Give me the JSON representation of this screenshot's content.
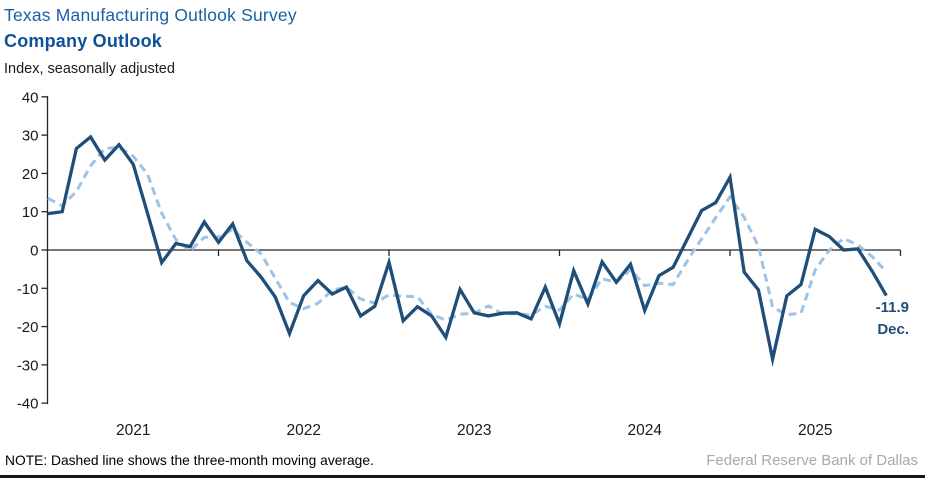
{
  "header": {
    "title": "Texas Manufacturing Outlook Survey",
    "subtitle": "Company Outlook",
    "units_label": "Index, seasonally adjusted"
  },
  "annotation": {
    "value": "-11.9",
    "month": "Dec."
  },
  "footer": {
    "note": "NOTE: Dashed line shows the three-month moving average.",
    "source": "Federal Reserve Bank of Dallas"
  },
  "colors": {
    "title_blue": "#1b5fa6",
    "subtitle_blue": "#0f509b",
    "solid_line": "#1f4e79",
    "dashed_line": "#9dc3e6",
    "axis": "#262626",
    "tick_text": "#1a1a1a",
    "source_gray": "#a9a9a9",
    "bottom_rule": "#16161d"
  },
  "chart_data": {
    "type": "line",
    "title": "Texas Manufacturing Outlook Survey — Company Outlook",
    "ylabel": "Index, seasonally adjusted",
    "ylim": [
      -40,
      40
    ],
    "ytick_labels": [
      "40",
      "30",
      "20",
      "10",
      "0",
      "-10",
      "-20",
      "-30",
      "-40"
    ],
    "ytick_values": [
      40,
      30,
      20,
      10,
      0,
      -10,
      -20,
      -30,
      -40
    ],
    "x_start_month": "2021-01",
    "x_end_month": "2025-12",
    "year_labels": [
      "2021",
      "2022",
      "2023",
      "2024",
      "2025"
    ],
    "grid": false,
    "legend_position": "none",
    "last_point_label": "-11.9 Dec.",
    "series": [
      {
        "name": "Company outlook index (monthly)",
        "style": "solid",
        "color": "#1f4e79",
        "values": [
          9.5,
          10.0,
          26.5,
          29.5,
          23.5,
          27.5,
          22.4,
          9.6,
          -3.3,
          1.7,
          0.9,
          7.3,
          2.0,
          6.8,
          -2.8,
          -7.1,
          -12.3,
          -21.8,
          -11.9,
          -8.0,
          -11.5,
          -9.7,
          -17.2,
          -14.7,
          -3.2,
          -18.5,
          -14.8,
          -17.2,
          -22.8,
          -10.3,
          -16.4,
          -17.2,
          -16.5,
          -16.4,
          -18.0,
          -9.7,
          -19.3,
          -5.4,
          -14.1,
          -3.1,
          -8.4,
          -3.7,
          -15.8,
          -6.7,
          -4.5,
          2.9,
          10.3,
          12.4,
          19.0,
          -5.8,
          -10.4,
          -28.5,
          -12.0,
          -9.0,
          5.4,
          3.5,
          0.0,
          0.3,
          -5.5,
          -11.9
        ]
      },
      {
        "name": "Three-month moving average",
        "style": "dashed",
        "color": "#9dc3e6",
        "values": [
          13.5,
          11.5,
          15.3,
          22.0,
          26.5,
          26.8,
          24.5,
          19.8,
          9.6,
          2.7,
          -0.2,
          3.3,
          3.4,
          5.4,
          2.0,
          -1.0,
          -7.4,
          -13.7,
          -15.3,
          -13.9,
          -10.5,
          -9.7,
          -12.8,
          -13.9,
          -11.7,
          -12.1,
          -12.2,
          -16.8,
          -18.3,
          -16.8,
          -16.5,
          -14.6,
          -16.7,
          -16.6,
          -17.0,
          -14.7,
          -15.7,
          -11.5,
          -12.9,
          -7.5,
          -8.5,
          -5.1,
          -9.3,
          -8.7,
          -9.0,
          -2.8,
          2.9,
          8.5,
          13.9,
          8.5,
          1.0,
          -14.9,
          -16.9,
          -16.5,
          -5.2,
          0.0,
          3.0,
          1.3,
          -1.7,
          -5.7
        ]
      }
    ]
  }
}
